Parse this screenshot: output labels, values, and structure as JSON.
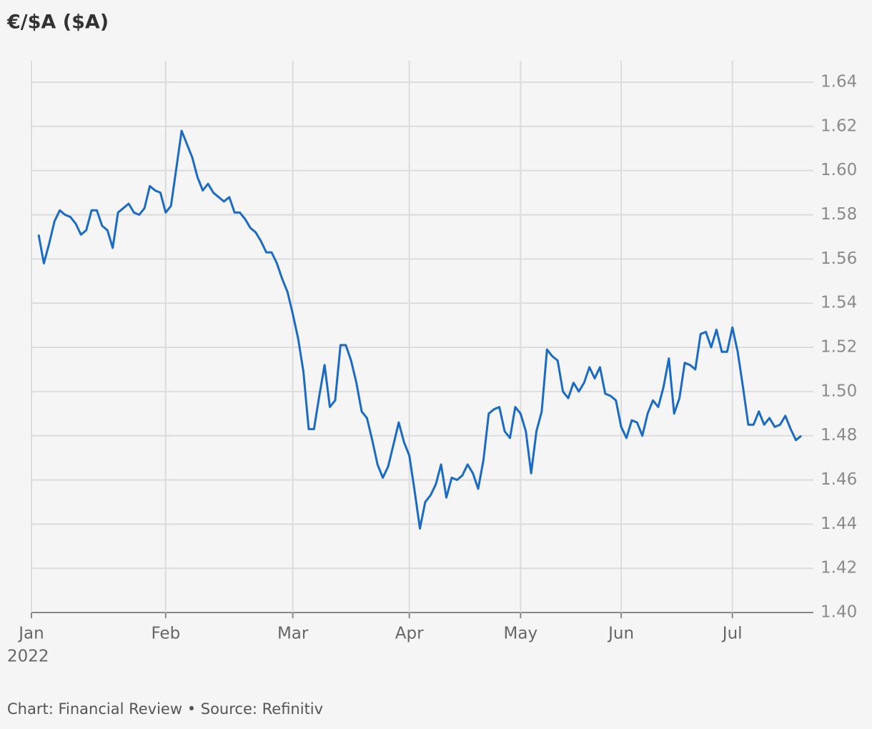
{
  "chart_data": {
    "type": "line",
    "title": "€/$A ($A)",
    "source": "Chart: Financial Review • Source: Refinitiv",
    "x_year_label": "2022",
    "categories": [
      "Jan",
      null,
      null,
      null,
      null,
      null,
      null,
      null,
      null,
      null,
      null,
      null,
      null,
      null,
      null,
      null,
      null,
      null,
      null,
      null,
      null,
      null,
      null,
      null,
      "Feb",
      null,
      null,
      null,
      null,
      null,
      null,
      null,
      null,
      null,
      null,
      null,
      null,
      null,
      null,
      null,
      null,
      null,
      null,
      null,
      null,
      null,
      null,
      null,
      "Mar",
      null,
      null,
      null,
      null,
      null,
      null,
      null,
      null,
      null,
      null,
      null,
      null,
      null,
      null,
      null,
      null,
      null,
      null,
      null,
      null,
      null,
      "Apr",
      null,
      null,
      null,
      null,
      null,
      null,
      null,
      null,
      null,
      null,
      null,
      null,
      null,
      null,
      null,
      null,
      null,
      null,
      null,
      null,
      "May",
      null,
      null,
      null,
      null,
      null,
      null,
      null,
      null,
      null,
      null,
      null,
      null,
      null,
      null,
      null,
      null,
      null,
      null,
      "Jun",
      null,
      null,
      null,
      null,
      null,
      null,
      null,
      null,
      null,
      null,
      null,
      null,
      null,
      null,
      null,
      null,
      null,
      null,
      null,
      null,
      "Jul",
      null,
      null,
      null,
      null,
      null,
      null,
      null,
      null,
      null,
      null,
      null,
      null,
      null
    ],
    "series": [
      {
        "name": "€/$A",
        "color": "#1a6bc4",
        "values": [
          1.571,
          1.558,
          1.567,
          1.577,
          1.582,
          1.58,
          1.579,
          1.576,
          1.571,
          1.573,
          1.582,
          1.582,
          1.575,
          1.573,
          1.565,
          1.581,
          1.583,
          1.585,
          1.581,
          1.58,
          1.583,
          1.593,
          1.591,
          1.59,
          1.581,
          1.584,
          1.601,
          1.618,
          1.612,
          1.606,
          1.597,
          1.591,
          1.594,
          1.59,
          1.588,
          1.586,
          1.588,
          1.581,
          1.581,
          1.578,
          1.574,
          1.572,
          1.568,
          1.563,
          1.563,
          1.558,
          1.551,
          1.545,
          1.535,
          1.524,
          1.509,
          1.483,
          1.483,
          1.498,
          1.512,
          1.493,
          1.496,
          1.521,
          1.521,
          1.514,
          1.504,
          1.491,
          1.488,
          1.478,
          1.467,
          1.461,
          1.466,
          1.476,
          1.486,
          1.477,
          1.471,
          1.455,
          1.438,
          1.45,
          1.453,
          1.458,
          1.467,
          1.452,
          1.461,
          1.46,
          1.462,
          1.467,
          1.463,
          1.456,
          1.469,
          1.49,
          1.492,
          1.493,
          1.482,
          1.479,
          1.493,
          1.49,
          1.482,
          1.463,
          1.482,
          1.491,
          1.519,
          1.516,
          1.514,
          1.5,
          1.497,
          1.504,
          1.5,
          1.504,
          1.511,
          1.506,
          1.511,
          1.499,
          1.498,
          1.496,
          1.484,
          1.479,
          1.487,
          1.486,
          1.48,
          1.49,
          1.496,
          1.493,
          1.502,
          1.515,
          1.49,
          1.497,
          1.513,
          1.512,
          1.51,
          1.526,
          1.527,
          1.52,
          1.528,
          1.518,
          1.518,
          1.529,
          1.518,
          1.502,
          1.485,
          1.485,
          1.491,
          1.485,
          1.488,
          1.484,
          1.485,
          1.489,
          1.483,
          1.478,
          1.48
        ]
      }
    ],
    "ylim": [
      1.4,
      1.64
    ],
    "yticks": [
      {
        "value": 1.4,
        "label": "1.40"
      },
      1.42,
      1.44,
      1.46,
      1.48,
      {
        "value": 1.5,
        "label": "1.50"
      },
      1.52,
      1.54,
      1.56,
      1.58,
      {
        "value": 1.6,
        "label": "1.60"
      },
      1.62,
      1.64
    ],
    "grid": true
  }
}
